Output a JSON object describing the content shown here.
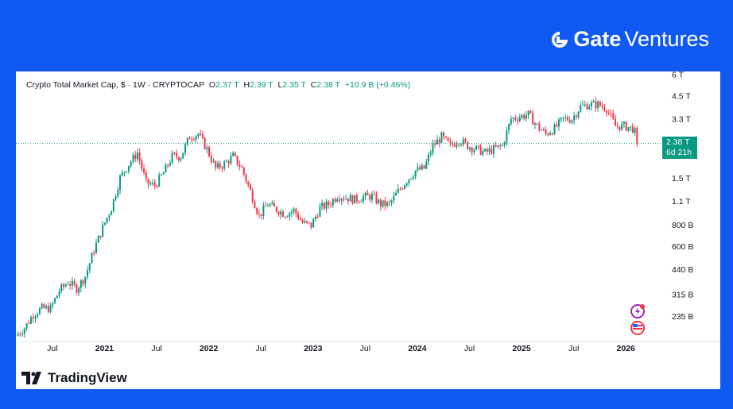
{
  "brand": {
    "name_bold": "Gate",
    "name_rest": " Ventures"
  },
  "legend": {
    "title": "Crypto Total Market Cap, $ · 1W · CRYPTOCAP",
    "o_label": "O",
    "o": "2.37 T",
    "h_label": "H",
    "h": "2.39 T",
    "l_label": "L",
    "l": "2.35 T",
    "c_label": "C",
    "c": "2.38 T",
    "change": "+10.9 B (+0.46%)"
  },
  "price_tag": {
    "value": "2.38 T",
    "countdown": "6d 21h"
  },
  "footer": {
    "logo_text": "TradingView"
  },
  "colors": {
    "up": "#089981",
    "down": "#f23645",
    "background": "#1059f2"
  },
  "chart_data": {
    "type": "candlestick",
    "title": "Crypto Total Market Cap",
    "scale": "log",
    "unit": "T USD",
    "ylim": [
      0.176,
      6.1
    ],
    "y_ticks": [
      {
        "v": 6,
        "label": "6 T"
      },
      {
        "v": 4.5,
        "label": "4.5 T"
      },
      {
        "v": 3.3,
        "label": "3.3 T"
      },
      {
        "v": 1.5,
        "label": "1.5 T"
      },
      {
        "v": 1.1,
        "label": "1.1 T"
      },
      {
        "v": 0.8,
        "label": "800 B"
      },
      {
        "v": 0.6,
        "label": "600 B"
      },
      {
        "v": 0.44,
        "label": "440 B"
      },
      {
        "v": 0.315,
        "label": "315 B"
      },
      {
        "v": 0.235,
        "label": "235 B"
      }
    ],
    "x_ticks": [
      {
        "t": 2020.5,
        "label": "Jul"
      },
      {
        "t": 2021,
        "label": "2021"
      },
      {
        "t": 2021.5,
        "label": "Jul"
      },
      {
        "t": 2022,
        "label": "2022"
      },
      {
        "t": 2022.5,
        "label": "Jul"
      },
      {
        "t": 2023,
        "label": "2023"
      },
      {
        "t": 2023.5,
        "label": "Jul"
      },
      {
        "t": 2024,
        "label": "2024"
      },
      {
        "t": 2024.5,
        "label": "Jul"
      },
      {
        "t": 2025,
        "label": "2025"
      },
      {
        "t": 2025.5,
        "label": "Jul"
      },
      {
        "t": 2026,
        "label": "2026"
      }
    ],
    "xlim": [
      2020.15,
      2026.25
    ],
    "start": 2020.17,
    "monthly_close": [
      0.2,
      0.24,
      0.26,
      0.26,
      0.33,
      0.37,
      0.34,
      0.4,
      0.57,
      0.77,
      1.0,
      1.5,
      1.8,
      2.1,
      1.4,
      1.35,
      1.6,
      2.0,
      2.0,
      2.6,
      2.7,
      2.2,
      1.7,
      1.8,
      2.0,
      1.7,
      1.25,
      0.9,
      1.05,
      0.98,
      0.92,
      0.97,
      0.82,
      0.79,
      1.0,
      1.05,
      1.18,
      1.15,
      1.12,
      1.16,
      1.17,
      1.05,
      1.05,
      1.25,
      1.45,
      1.65,
      1.7,
      2.3,
      2.6,
      2.3,
      2.5,
      2.3,
      2.2,
      2.1,
      2.2,
      2.3,
      3.3,
      3.4,
      3.5,
      3.0,
      2.7,
      2.9,
      3.3,
      3.3,
      3.9,
      4.0,
      4.0,
      3.8,
      3.0,
      3.0,
      2.9,
      2.38
    ],
    "last_price": 2.38
  }
}
